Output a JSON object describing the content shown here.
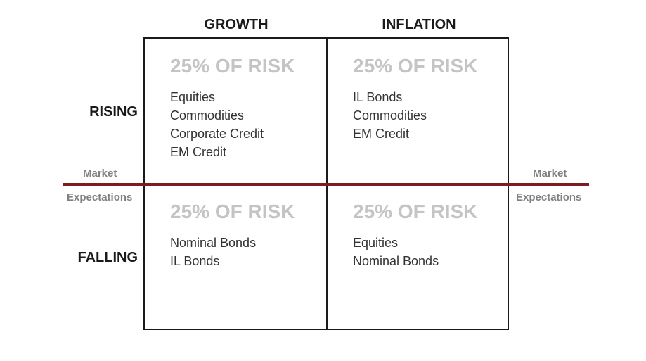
{
  "columns": {
    "growth": "GROWTH",
    "inflation": "INFLATION"
  },
  "rows": {
    "rising": "RISING",
    "falling": "FALLING"
  },
  "side_labels": {
    "left_top": "Market",
    "left_bottom": "Expectations",
    "right_top": "Market",
    "right_bottom": "Expectations"
  },
  "quadrants": {
    "rising_growth": {
      "risk": "25% OF RISK",
      "items": [
        "Equities",
        "Commodities",
        "Corporate Credit",
        "EM Credit"
      ]
    },
    "rising_inflation": {
      "risk": "25% OF RISK",
      "items": [
        "IL Bonds",
        "Commodities",
        "EM Credit"
      ]
    },
    "falling_growth": {
      "risk": "25% OF RISK",
      "items": [
        "Nominal Bonds",
        "IL Bonds"
      ]
    },
    "falling_inflation": {
      "risk": "25% OF RISK",
      "items": [
        "Equities",
        "Nominal Bonds"
      ]
    }
  },
  "colors": {
    "divider": "#7a1f1f",
    "risk_text": "#c4c4c4",
    "side_text": "#808080"
  }
}
